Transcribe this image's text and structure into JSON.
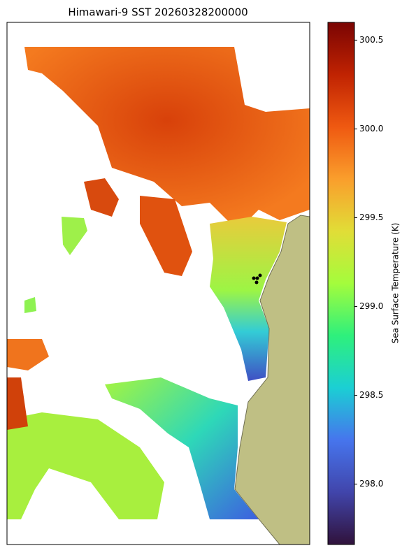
{
  "chart_data": {
    "type": "map",
    "title": "Himawari-9 SST 20260328200000",
    "colorbar": {
      "label": "Sea Surface Temperature (K)",
      "lim": [
        297.66,
        300.6
      ],
      "ticks": [
        {
          "value": 298,
          "label": "298.0"
        },
        298.5,
        {
          "value": 299,
          "label": "299.0"
        },
        299.5,
        {
          "value": 300,
          "label": "300.0"
        },
        300.5
      ]
    }
  }
}
